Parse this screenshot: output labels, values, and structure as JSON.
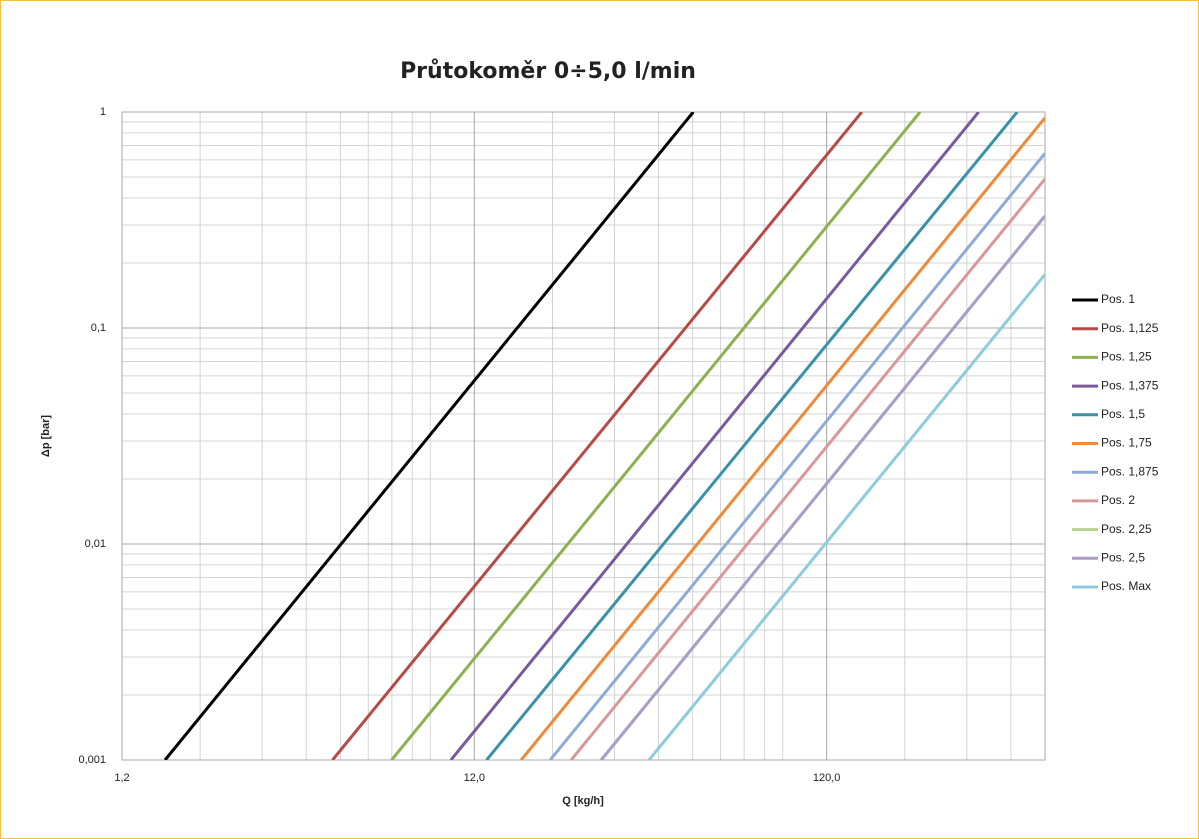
{
  "chart_data": {
    "type": "line",
    "title": "Průtokoměr 0÷5,0 l/min",
    "x_label": "Q [kg/h]",
    "y_label": "Δp [bar]",
    "xscale": "log",
    "yscale": "log",
    "grid": true,
    "minor_grid": true,
    "legend": "right",
    "xlim": [
      1.2,
      500
    ],
    "ylim": [
      0.001,
      1
    ],
    "xticks": [
      {
        "value": 1.2,
        "label": "1,2"
      },
      {
        "value": 12,
        "label": "12,0"
      },
      {
        "value": 120,
        "label": "120,0"
      }
    ],
    "yticks": [
      {
        "value": 0.001,
        "label": "0,001"
      },
      {
        "value": 0.01,
        "label": "0,01"
      },
      {
        "value": 0.1,
        "label": "0,1"
      },
      1
    ],
    "series": [
      {
        "name": "Pos. 1",
        "color": "#000000",
        "x": [
          1.59,
          50.2
        ],
        "values": [
          0.001,
          1
        ]
      },
      {
        "name": "Pos. 1,125",
        "color": "#b84a46",
        "x": [
          4.75,
          151
        ],
        "values": [
          0.001,
          1
        ]
      },
      {
        "name": "Pos. 1,25",
        "color": "#8fb04e",
        "x": [
          6.99,
          221
        ],
        "values": [
          0.001,
          1
        ]
      },
      {
        "name": "Pos. 1,375",
        "color": "#7a5a9e",
        "x": [
          10.3,
          324
        ],
        "values": [
          0.001,
          1
        ]
      },
      {
        "name": "Pos. 1,5",
        "color": "#3a92a8",
        "x": [
          13.0,
          417
        ],
        "values": [
          0.001,
          1
        ]
      },
      {
        "name": "Pos. 1,75",
        "color": "#ee8a3a",
        "x": [
          16.3,
          500
        ],
        "values": [
          0.001,
          0.94
        ]
      },
      {
        "name": "Pos. 1,875",
        "color": "#8eaad6",
        "x": [
          19.7,
          500
        ],
        "values": [
          0.001,
          0.644
        ]
      },
      {
        "name": "Pos. 2",
        "color": "#d9979a",
        "x": [
          22.6,
          500
        ],
        "values": [
          0.001,
          0.49
        ]
      },
      {
        "name": "Pos. 2,25",
        "color": "#b8d38f",
        "x": [
          27.5,
          500
        ],
        "values": [
          0.001,
          0.33
        ]
      },
      {
        "name": "Pos. 2,5",
        "color": "#ab9cc8",
        "x": [
          27.5,
          500
        ],
        "values": [
          0.001,
          0.33
        ]
      },
      {
        "name": "Pos. Max",
        "color": "#8ecbdc",
        "x": [
          37.6,
          500
        ],
        "values": [
          0.001,
          0.177
        ]
      }
    ]
  }
}
